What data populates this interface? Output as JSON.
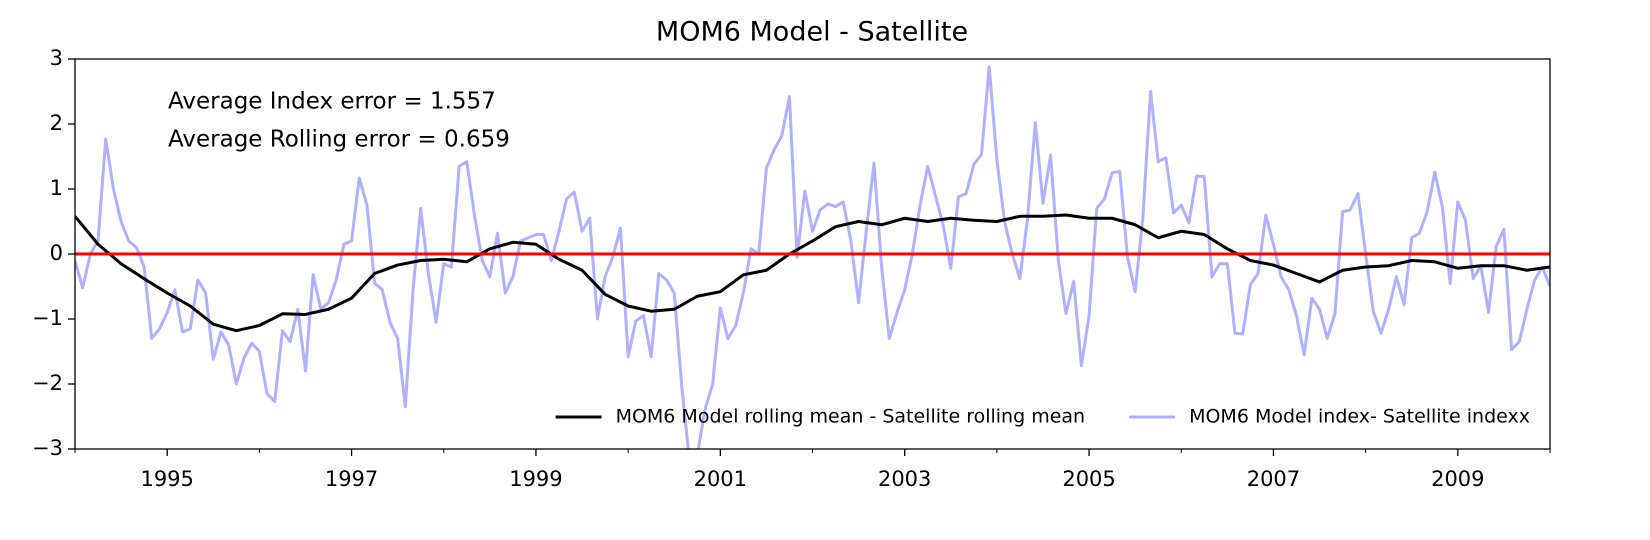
{
  "chart_data": {
    "type": "line",
    "title": "MOM6 Model - Satellite",
    "annotations": [
      "Average Index error = 1.557",
      "Average Rolling error = 0.659"
    ],
    "xlim": [
      1994,
      2010
    ],
    "xticks": [
      1995,
      1997,
      1999,
      2001,
      2003,
      2005,
      2007,
      2009
    ],
    "xminorticks": [
      1994,
      1996,
      1998,
      2000,
      2002,
      2004,
      2006,
      2008,
      2010
    ],
    "ylim": [
      -3,
      3
    ],
    "yticks": [
      {
        "value": -3,
        "label": "−3"
      },
      {
        "value": -2,
        "label": "−2"
      },
      {
        "value": -1,
        "label": "−1"
      },
      0,
      1,
      2,
      3
    ],
    "reference_line": {
      "y": 0,
      "color": "#ff0000"
    },
    "legend": "lower right",
    "series": [
      {
        "name": "MOM6 Model rolling mean - Satellite rolling mean",
        "color": "#000000",
        "x": [
          1994,
          1994.25,
          1994.5,
          1994.75,
          1995,
          1995.25,
          1995.5,
          1995.75,
          1996,
          1996.25,
          1996.5,
          1996.75,
          1997,
          1997.25,
          1997.5,
          1997.75,
          1998,
          1998.25,
          1998.5,
          1998.75,
          1999,
          1999.25,
          1999.5,
          1999.75,
          2000,
          2000.25,
          2000.5,
          2000.75,
          2001,
          2001.25,
          2001.5,
          2001.75,
          2002,
          2002.25,
          2002.5,
          2002.75,
          2003,
          2003.25,
          2003.5,
          2003.75,
          2004,
          2004.25,
          2004.5,
          2004.75,
          2005,
          2005.25,
          2005.5,
          2005.75,
          2006,
          2006.25,
          2006.5,
          2006.75,
          2007,
          2007.25,
          2007.5,
          2007.75,
          2008,
          2008.25,
          2008.5,
          2008.75,
          2009,
          2009.25,
          2009.5,
          2009.75,
          2010
        ],
        "values": [
          0.58,
          0.15,
          -0.15,
          -0.38,
          -0.6,
          -0.8,
          -1.08,
          -1.18,
          -1.1,
          -0.92,
          -0.93,
          -0.85,
          -0.68,
          -0.3,
          -0.17,
          -0.1,
          -0.08,
          -0.12,
          0.08,
          0.18,
          0.15,
          -0.08,
          -0.25,
          -0.62,
          -0.8,
          -0.88,
          -0.85,
          -0.65,
          -0.58,
          -0.32,
          -0.25,
          0.0,
          0.2,
          0.42,
          0.5,
          0.45,
          0.55,
          0.5,
          0.55,
          0.52,
          0.5,
          0.58,
          0.58,
          0.6,
          0.55,
          0.55,
          0.45,
          0.25,
          0.35,
          0.3,
          0.08,
          -0.1,
          -0.17,
          -0.3,
          -0.43,
          -0.25,
          -0.2,
          -0.18,
          -0.1,
          -0.12,
          -0.22,
          -0.18,
          -0.18,
          -0.25,
          -0.2
        ]
      },
      {
        "name": "MOM6 Model index- Satellite indexx",
        "color": "#b0b0ff",
        "x": [
          1994,
          1994.083,
          1994.167,
          1994.25,
          1994.333,
          1994.417,
          1994.5,
          1994.583,
          1994.667,
          1994.75,
          1994.833,
          1994.917,
          1995,
          1995.083,
          1995.167,
          1995.25,
          1995.333,
          1995.417,
          1995.5,
          1995.583,
          1995.667,
          1995.75,
          1995.833,
          1995.917,
          1996,
          1996.083,
          1996.167,
          1996.25,
          1996.333,
          1996.417,
          1996.5,
          1996.583,
          1996.667,
          1996.75,
          1996.833,
          1996.917,
          1997,
          1997.083,
          1997.167,
          1997.25,
          1997.333,
          1997.417,
          1997.5,
          1997.583,
          1997.667,
          1997.75,
          1997.833,
          1997.917,
          1998,
          1998.083,
          1998.167,
          1998.25,
          1998.333,
          1998.417,
          1998.5,
          1998.583,
          1998.667,
          1998.75,
          1998.833,
          1998.917,
          1999,
          1999.083,
          1999.167,
          1999.25,
          1999.333,
          1999.417,
          1999.5,
          1999.583,
          1999.667,
          1999.75,
          1999.833,
          1999.917,
          2000,
          2000.083,
          2000.167,
          2000.25,
          2000.333,
          2000.417,
          2000.5,
          2000.583,
          2000.667,
          2000.75,
          2000.833,
          2000.917,
          2001,
          2001.083,
          2001.167,
          2001.25,
          2001.333,
          2001.417,
          2001.5,
          2001.583,
          2001.667,
          2001.75,
          2001.833,
          2001.917,
          2002,
          2002.083,
          2002.167,
          2002.25,
          2002.333,
          2002.417,
          2002.5,
          2002.583,
          2002.667,
          2002.75,
          2002.833,
          2002.917,
          2003,
          2003.083,
          2003.167,
          2003.25,
          2003.333,
          2003.417,
          2003.5,
          2003.583,
          2003.667,
          2003.75,
          2003.833,
          2003.917,
          2004,
          2004.083,
          2004.167,
          2004.25,
          2004.333,
          2004.417,
          2004.5,
          2004.583,
          2004.667,
          2004.75,
          2004.833,
          2004.917,
          2005,
          2005.083,
          2005.167,
          2005.25,
          2005.333,
          2005.417,
          2005.5,
          2005.583,
          2005.667,
          2005.75,
          2005.833,
          2005.917,
          2006,
          2006.083,
          2006.167,
          2006.25,
          2006.333,
          2006.417,
          2006.5,
          2006.583,
          2006.667,
          2006.75,
          2006.833,
          2006.917,
          2007,
          2007.083,
          2007.167,
          2007.25,
          2007.333,
          2007.417,
          2007.5,
          2007.583,
          2007.667,
          2007.75,
          2007.833,
          2007.917,
          2008,
          2008.083,
          2008.167,
          2008.25,
          2008.333,
          2008.417,
          2008.5,
          2008.583,
          2008.667,
          2008.75,
          2008.833,
          2008.917,
          2009,
          2009.083,
          2009.167,
          2009.25,
          2009.333,
          2009.417,
          2009.5,
          2009.583,
          2009.667,
          2009.75,
          2009.833,
          2009.917,
          2010
        ],
        "values": [
          -0.1,
          -0.52,
          0.0,
          0.2,
          1.77,
          1.0,
          0.5,
          0.2,
          0.1,
          -0.2,
          -1.3,
          -1.15,
          -0.9,
          -0.55,
          -1.2,
          -1.15,
          -0.4,
          -0.6,
          -1.62,
          -1.2,
          -1.4,
          -2.0,
          -1.6,
          -1.37,
          -1.5,
          -2.15,
          -2.27,
          -1.18,
          -1.35,
          -0.85,
          -1.8,
          -0.32,
          -0.85,
          -0.75,
          -0.4,
          0.15,
          0.2,
          1.17,
          0.75,
          -0.45,
          -0.55,
          -1.05,
          -1.3,
          -2.35,
          -0.55,
          0.7,
          -0.3,
          -1.05,
          -0.15,
          -0.2,
          1.35,
          1.42,
          0.6,
          -0.1,
          -0.35,
          0.32,
          -0.6,
          -0.35,
          0.2,
          0.25,
          0.3,
          0.3,
          -0.1,
          0.35,
          0.85,
          0.95,
          0.35,
          0.55,
          -1.0,
          -0.35,
          -0.05,
          0.4,
          -1.58,
          -1.03,
          -0.95,
          -1.58,
          -0.3,
          -0.4,
          -0.6,
          -2.05,
          -3.2,
          -3.1,
          -2.4,
          -2.0,
          -0.83,
          -1.3,
          -1.1,
          -0.6,
          0.08,
          0.0,
          1.32,
          1.6,
          1.82,
          2.42,
          -0.05,
          0.97,
          0.35,
          0.68,
          0.77,
          0.73,
          0.8,
          0.2,
          -0.75,
          0.35,
          1.4,
          -0.2,
          -1.3,
          -0.9,
          -0.55,
          0.0,
          0.75,
          1.35,
          0.9,
          0.45,
          -0.22,
          0.88,
          0.93,
          1.38,
          1.53,
          2.88,
          1.45,
          0.5,
          0.0,
          -0.38,
          0.55,
          2.02,
          0.78,
          1.52,
          -0.1,
          -0.92,
          -0.42,
          -1.72,
          -0.95,
          0.7,
          0.85,
          1.25,
          1.27,
          -0.05,
          -0.58,
          0.55,
          2.5,
          1.42,
          1.48,
          0.63,
          0.75,
          0.48,
          1.2,
          1.19,
          -0.35,
          -0.15,
          -0.15,
          -1.22,
          -1.23,
          -0.47,
          -0.3,
          0.6,
          0.15,
          -0.35,
          -0.55,
          -0.95,
          -1.55,
          -0.68,
          -0.85,
          -1.3,
          -0.92,
          0.65,
          0.68,
          0.93,
          0.0,
          -0.88,
          -1.22,
          -0.85,
          -0.35,
          -0.78,
          0.25,
          0.32,
          0.65,
          1.26,
          0.72,
          -0.45,
          0.8,
          0.52,
          -0.38,
          -0.18,
          -0.9,
          0.12,
          0.38,
          -1.47,
          -1.35,
          -0.85,
          -0.4,
          -0.2,
          -0.5
        ]
      }
    ]
  }
}
